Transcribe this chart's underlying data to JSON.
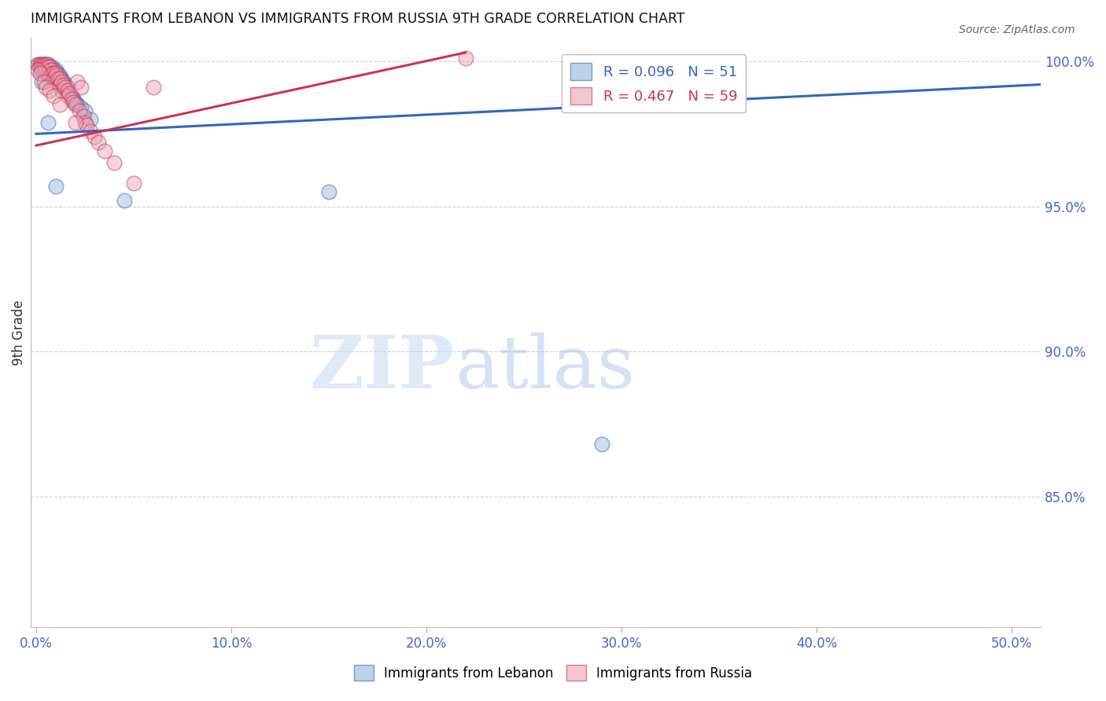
{
  "title": "IMMIGRANTS FROM LEBANON VS IMMIGRANTS FROM RUSSIA 9TH GRADE CORRELATION CHART",
  "source": "Source: ZipAtlas.com",
  "xlabel_ticks": [
    "0.0%",
    "10.0%",
    "20.0%",
    "30.0%",
    "40.0%",
    "50.0%"
  ],
  "xlabel_vals": [
    0.0,
    0.1,
    0.2,
    0.3,
    0.4,
    0.5
  ],
  "ylabel": "9th Grade",
  "ylabel_ticks": [
    "85.0%",
    "90.0%",
    "95.0%",
    "100.0%"
  ],
  "ylabel_vals": [
    0.85,
    0.9,
    0.95,
    1.0
  ],
  "ylim": [
    0.805,
    1.008
  ],
  "xlim": [
    -0.003,
    0.515
  ],
  "legend_blue_r": "R = 0.096",
  "legend_blue_n": "N = 51",
  "legend_pink_r": "R = 0.467",
  "legend_pink_n": "N = 59",
  "blue_color": "#92b4d8",
  "pink_color": "#e8a0b0",
  "blue_line_color": "#3366bb",
  "pink_line_color": "#cc3355",
  "watermark_zip": "ZIP",
  "watermark_atlas": "atlas",
  "blue_trendline_x": [
    0.0,
    0.515
  ],
  "blue_trendline_y": [
    0.975,
    0.992
  ],
  "pink_trendline_x": [
    0.0,
    0.22
  ],
  "pink_trendline_y": [
    0.971,
    1.003
  ],
  "blue_points_x": [
    0.001,
    0.002,
    0.002,
    0.003,
    0.003,
    0.003,
    0.004,
    0.004,
    0.004,
    0.005,
    0.005,
    0.005,
    0.005,
    0.006,
    0.006,
    0.006,
    0.007,
    0.007,
    0.007,
    0.008,
    0.008,
    0.008,
    0.009,
    0.009,
    0.01,
    0.01,
    0.01,
    0.011,
    0.011,
    0.012,
    0.012,
    0.013,
    0.013,
    0.014,
    0.015,
    0.016,
    0.016,
    0.017,
    0.018,
    0.019,
    0.02,
    0.021,
    0.023,
    0.025,
    0.028,
    0.003,
    0.006,
    0.01,
    0.045,
    0.15,
    0.29
  ],
  "blue_points_y": [
    0.999,
    0.999,
    0.998,
    0.999,
    0.998,
    0.997,
    0.999,
    0.998,
    0.997,
    0.999,
    0.998,
    0.997,
    0.996,
    0.999,
    0.998,
    0.996,
    0.998,
    0.997,
    0.995,
    0.998,
    0.997,
    0.995,
    0.997,
    0.994,
    0.997,
    0.996,
    0.994,
    0.996,
    0.993,
    0.995,
    0.992,
    0.994,
    0.991,
    0.993,
    0.992,
    0.991,
    0.99,
    0.989,
    0.988,
    0.987,
    0.986,
    0.985,
    0.984,
    0.983,
    0.98,
    0.993,
    0.979,
    0.957,
    0.952,
    0.955,
    0.868
  ],
  "pink_points_x": [
    0.001,
    0.002,
    0.002,
    0.003,
    0.003,
    0.003,
    0.004,
    0.004,
    0.005,
    0.005,
    0.005,
    0.006,
    0.006,
    0.006,
    0.007,
    0.007,
    0.007,
    0.008,
    0.008,
    0.009,
    0.009,
    0.01,
    0.01,
    0.01,
    0.011,
    0.012,
    0.012,
    0.013,
    0.013,
    0.014,
    0.015,
    0.016,
    0.016,
    0.017,
    0.018,
    0.019,
    0.02,
    0.021,
    0.022,
    0.023,
    0.024,
    0.025,
    0.026,
    0.028,
    0.03,
    0.032,
    0.035,
    0.04,
    0.05,
    0.06,
    0.001,
    0.002,
    0.004,
    0.005,
    0.007,
    0.009,
    0.012,
    0.02,
    0.22
  ],
  "pink_points_y": [
    0.999,
    0.999,
    0.998,
    0.999,
    0.998,
    0.997,
    0.999,
    0.998,
    0.999,
    0.998,
    0.997,
    0.999,
    0.998,
    0.996,
    0.998,
    0.997,
    0.995,
    0.997,
    0.996,
    0.996,
    0.994,
    0.996,
    0.995,
    0.993,
    0.994,
    0.994,
    0.992,
    0.993,
    0.99,
    0.992,
    0.991,
    0.99,
    0.988,
    0.989,
    0.987,
    0.986,
    0.985,
    0.993,
    0.983,
    0.991,
    0.981,
    0.979,
    0.978,
    0.976,
    0.974,
    0.972,
    0.969,
    0.965,
    0.958,
    0.991,
    0.997,
    0.996,
    0.993,
    0.991,
    0.99,
    0.988,
    0.985,
    0.979,
    1.001
  ],
  "grid_color": "#d0d0d0",
  "background_color": "#ffffff"
}
